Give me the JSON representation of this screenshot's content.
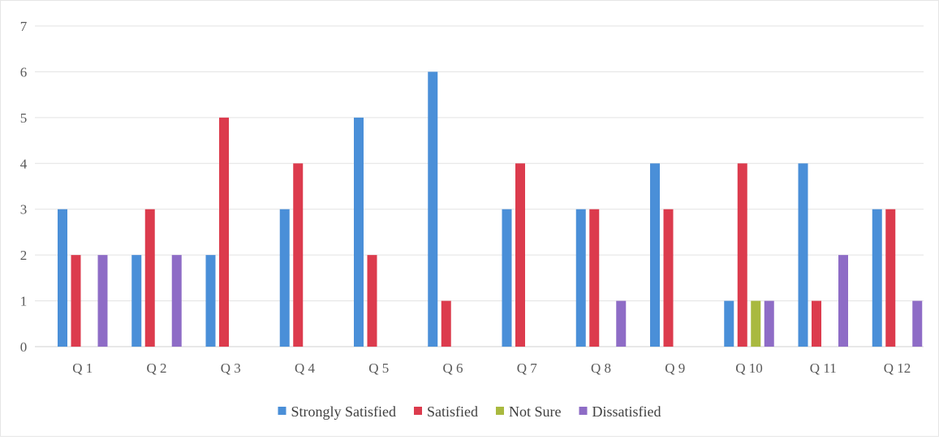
{
  "chart_data": {
    "type": "bar",
    "categories": [
      "Q 1",
      "Q 2",
      "Q 3",
      "Q 4",
      "Q 5",
      "Q 6",
      "Q 7",
      "Q 8",
      "Q 9",
      "Q 10",
      "Q 11",
      "Q 12"
    ],
    "series": [
      {
        "name": "Strongly Satisfied",
        "color": "#4a8fd8",
        "values": [
          3,
          2,
          2,
          3,
          5,
          6,
          3,
          3,
          4,
          1,
          4,
          3
        ]
      },
      {
        "name": "Satisfied",
        "color": "#dc3b4d",
        "values": [
          2,
          3,
          5,
          4,
          2,
          1,
          4,
          3,
          3,
          4,
          1,
          3
        ]
      },
      {
        "name": "Not Sure",
        "color": "#a9b93f",
        "values": [
          0,
          0,
          0,
          0,
          0,
          0,
          0,
          0,
          0,
          1,
          0,
          0
        ]
      },
      {
        "name": "Dissatisfied",
        "color": "#8e6cc6",
        "values": [
          2,
          2,
          0,
          0,
          0,
          0,
          0,
          1,
          0,
          1,
          2,
          1
        ]
      }
    ],
    "yticks": [
      0,
      1,
      2,
      3,
      4,
      5,
      6,
      7
    ],
    "ylim": [
      0,
      7
    ],
    "grid": true,
    "legend_position": "bottom"
  }
}
